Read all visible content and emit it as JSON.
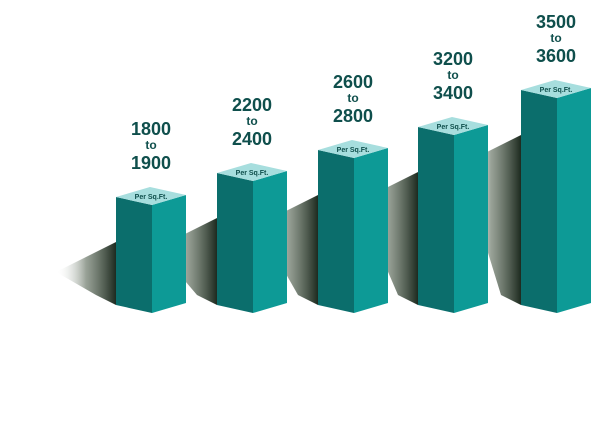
{
  "chart_data": {
    "type": "bar",
    "title": "",
    "xlabel": "",
    "ylabel": "",
    "categories": [
      "1800 to 1900",
      "2200 to 2400",
      "2600 to 2800",
      "3200 to 3400",
      "3500 to 3600"
    ],
    "series": [
      {
        "low": [
          1800,
          2200,
          2600,
          3200,
          3500
        ],
        "high": [
          1900,
          2400,
          2800,
          3400,
          3600
        ]
      }
    ],
    "labels": [
      {
        "low": "1800",
        "mid": "to",
        "high": "1900"
      },
      {
        "low": "2200",
        "mid": "to",
        "high": "2400"
      },
      {
        "low": "2600",
        "mid": "to",
        "high": "2800"
      },
      {
        "low": "3200",
        "mid": "to",
        "high": "3400"
      },
      {
        "low": "3500",
        "mid": "to",
        "high": "3600"
      }
    ],
    "unit_label": "Per Sq.Ft.",
    "grid": false,
    "legend": "none",
    "colors": {
      "front": "#0d9a96",
      "side": "#0b6e6c",
      "top": "#a7dede",
      "text": "#0f4f4c",
      "shadow": "#1d2a1f"
    }
  }
}
